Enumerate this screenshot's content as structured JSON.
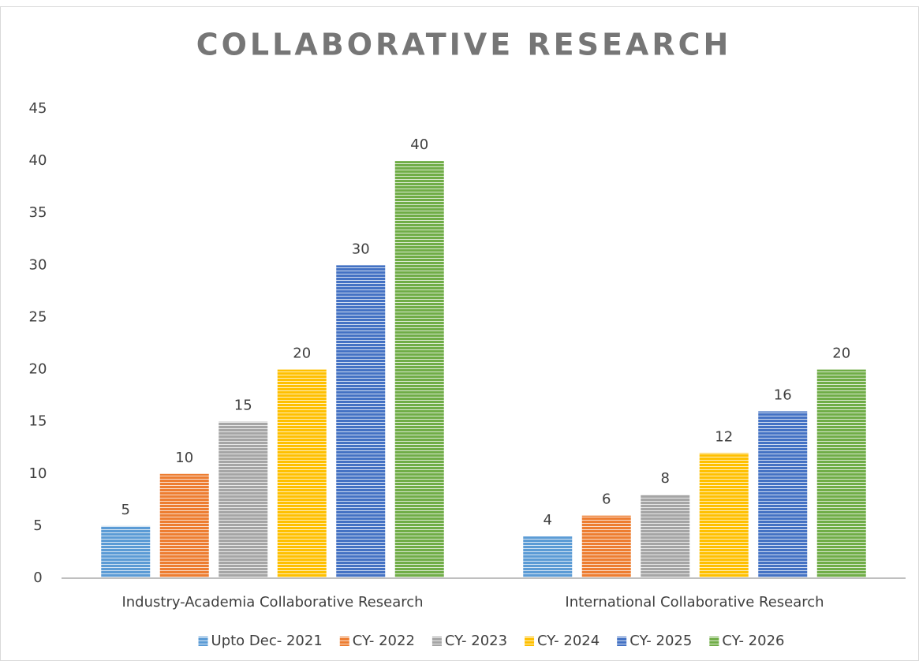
{
  "chart_data": {
    "type": "bar",
    "title": "COLLABORATIVE RESEARCH",
    "categories": [
      "Industry-Academia Collaborative Research",
      "International Collaborative Research"
    ],
    "series": [
      {
        "name": "Upto Dec- 2021",
        "color": "#5b9bd5",
        "values": [
          5,
          4
        ]
      },
      {
        "name": "CY- 2022",
        "color": "#ed7d31",
        "values": [
          10,
          6
        ]
      },
      {
        "name": "CY- 2023",
        "color": "#a5a5a5",
        "values": [
          15,
          8
        ]
      },
      {
        "name": "CY- 2024",
        "color": "#ffc000",
        "values": [
          20,
          12
        ]
      },
      {
        "name": "CY- 2025",
        "color": "#4472c4",
        "values": [
          30,
          16
        ]
      },
      {
        "name": "CY- 2026",
        "color": "#70ad47",
        "values": [
          40,
          20
        ]
      }
    ],
    "ylim": [
      0,
      45
    ],
    "yticks": [
      0,
      5,
      10,
      15,
      20,
      25,
      30,
      35,
      40,
      45
    ],
    "grid": false,
    "legend": "bottom"
  }
}
